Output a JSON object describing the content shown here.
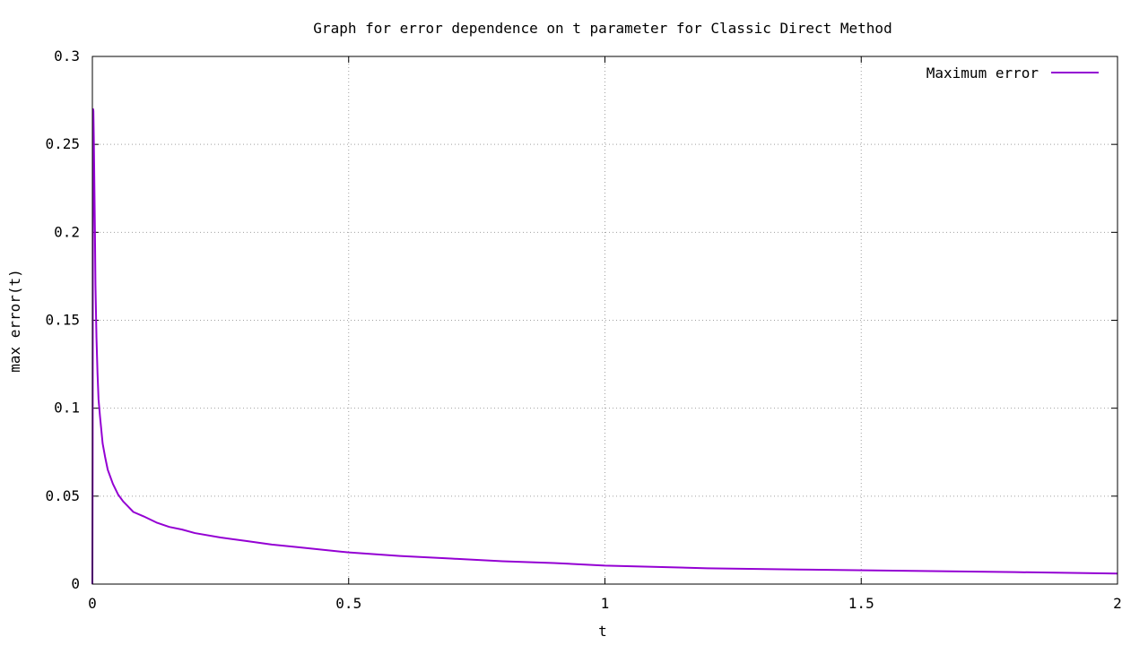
{
  "chart_data": {
    "type": "line",
    "title": "Graph for error dependence on t parameter for Classic Direct Method",
    "xlabel": "t",
    "ylabel": "max error(t)",
    "xlim": [
      0,
      2
    ],
    "ylim": [
      0,
      0.3
    ],
    "x_ticks": [
      0,
      0.5,
      1,
      1.5,
      2
    ],
    "x_tick_labels": [
      "0",
      "0.5",
      "1",
      "1.5",
      "2"
    ],
    "y_ticks": [
      0,
      0.05,
      0.1,
      0.15,
      0.2,
      0.25,
      0.3
    ],
    "y_tick_labels": [
      "0",
      "0.05",
      "0.1",
      "0.15",
      "0.2",
      "0.25",
      "0.3"
    ],
    "grid": true,
    "legend_position": "top-right",
    "series": [
      {
        "name": "Maximum error",
        "color": "#9400d3",
        "x": [
          0,
          0.0005,
          0.001,
          0.0015,
          0.002,
          0.003,
          0.004,
          0.005,
          0.006,
          0.008,
          0.01,
          0.012,
          0.015,
          0.02,
          0.025,
          0.03,
          0.04,
          0.05,
          0.06,
          0.07,
          0.08,
          0.1,
          0.125,
          0.15,
          0.175,
          0.2,
          0.25,
          0.3,
          0.35,
          0.4,
          0.5,
          0.6,
          0.7,
          0.8,
          0.9,
          1.0,
          1.2,
          1.4,
          1.6,
          1.8,
          2.0
        ],
        "y": [
          0,
          0.07,
          0.2,
          0.27,
          0.269,
          0.25,
          0.225,
          0.2,
          0.17,
          0.14,
          0.12,
          0.105,
          0.095,
          0.08,
          0.072,
          0.065,
          0.057,
          0.051,
          0.047,
          0.044,
          0.041,
          0.0385,
          0.035,
          0.0325,
          0.031,
          0.029,
          0.0265,
          0.0245,
          0.0225,
          0.021,
          0.018,
          0.016,
          0.0145,
          0.013,
          0.012,
          0.0105,
          0.009,
          0.0082,
          0.0075,
          0.0068,
          0.006
        ]
      }
    ]
  }
}
